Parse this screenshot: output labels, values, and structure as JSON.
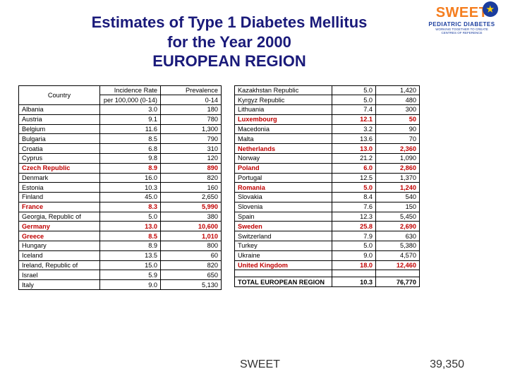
{
  "title_lines": [
    "Estimates of Type 1 Diabetes Mellitus",
    "for the Year 2000",
    "EUROPEAN REGION"
  ],
  "logo": {
    "brand": "SWEET",
    "sub1": "PEDIATRIC DIABETES",
    "sub2": "WORKING TOGETHER TO CREATE CENTRES OF REFERENCE"
  },
  "headers": {
    "country": "Country",
    "incidence_l1": "Incidence Rate",
    "incidence_l2": "per 100,000 (0-14)",
    "prevalence_l1": "Prevalence",
    "prevalence_l2": "0-14"
  },
  "left": [
    {
      "c": "Albania",
      "i": "3.0",
      "p": "180",
      "h": false
    },
    {
      "c": "Austria",
      "i": "9.1",
      "p": "780",
      "h": false
    },
    {
      "c": "Belgium",
      "i": "11.6",
      "p": "1,300",
      "h": false
    },
    {
      "c": "Bulgaria",
      "i": "8.5",
      "p": "790",
      "h": false
    },
    {
      "c": "Croatia",
      "i": "6.8",
      "p": "310",
      "h": false
    },
    {
      "c": "Cyprus",
      "i": "9.8",
      "p": "120",
      "h": false
    },
    {
      "c": "Czech Republic",
      "i": "8.9",
      "p": "890",
      "h": true
    },
    {
      "c": "Denmark",
      "i": "16.0",
      "p": "820",
      "h": false
    },
    {
      "c": "Estonia",
      "i": "10.3",
      "p": "160",
      "h": false
    },
    {
      "c": "Finland",
      "i": "45.0",
      "p": "2,650",
      "h": false
    },
    {
      "c": "France",
      "i": "8.3",
      "p": "5,990",
      "h": true
    },
    {
      "c": "Georgia, Republic of",
      "i": "5.0",
      "p": "380",
      "h": false
    },
    {
      "c": "Germany",
      "i": "13.0",
      "p": "10,600",
      "h": true
    },
    {
      "c": "Greece",
      "i": "8.5",
      "p": "1,010",
      "h": true
    },
    {
      "c": "Hungary",
      "i": "8.9",
      "p": "800",
      "h": false
    },
    {
      "c": "Iceland",
      "i": "13.5",
      "p": "60",
      "h": false
    },
    {
      "c": "Ireland, Republic of",
      "i": "15.0",
      "p": "820",
      "h": false
    },
    {
      "c": "Israel",
      "i": "5.9",
      "p": "650",
      "h": false
    },
    {
      "c": "Italy",
      "i": "9.0",
      "p": "5,130",
      "h": false
    }
  ],
  "right": [
    {
      "c": "Kazakhstan Republic",
      "i": "5.0",
      "p": "1,420",
      "h": false
    },
    {
      "c": "Kyrgyz Republic",
      "i": "5.0",
      "p": "480",
      "h": false
    },
    {
      "c": "Lithuania",
      "i": "7.4",
      "p": "300",
      "h": false
    },
    {
      "c": "Luxembourg",
      "i": "12.1",
      "p": "50",
      "h": true
    },
    {
      "c": "Macedonia",
      "i": "3.2",
      "p": "90",
      "h": false
    },
    {
      "c": "Malta",
      "i": "13.6",
      "p": "70",
      "h": false
    },
    {
      "c": "Netherlands",
      "i": "13.0",
      "p": "2,360",
      "h": true
    },
    {
      "c": "Norway",
      "i": "21.2",
      "p": "1,090",
      "h": false
    },
    {
      "c": "Poland",
      "i": "6.0",
      "p": "2,860",
      "h": true
    },
    {
      "c": "Portugal",
      "i": "12.5",
      "p": "1,370",
      "h": false
    },
    {
      "c": "Romania",
      "i": "5.0",
      "p": "1,240",
      "h": true
    },
    {
      "c": "Slovakia",
      "i": "8.4",
      "p": "540",
      "h": false
    },
    {
      "c": "Slovenia",
      "i": "7.6",
      "p": "150",
      "h": false
    },
    {
      "c": "Spain",
      "i": "12.3",
      "p": "5,450",
      "h": false
    },
    {
      "c": "Sweden",
      "i": "25.8",
      "p": "2,690",
      "h": true
    },
    {
      "c": "Switzerland",
      "i": "7.9",
      "p": "630",
      "h": false
    },
    {
      "c": "Turkey",
      "i": "5.0",
      "p": "5,380",
      "h": false
    },
    {
      "c": "Ukraine",
      "i": "9.0",
      "p": "4,570",
      "h": false
    },
    {
      "c": "United Kingdom",
      "i": "18.0",
      "p": "12,460",
      "h": true
    }
  ],
  "total": {
    "label": "TOTAL EUROPEAN REGION",
    "i": "10.3",
    "p": "76,770"
  },
  "footer": {
    "sweet": "SWEET",
    "num": "39,350"
  }
}
